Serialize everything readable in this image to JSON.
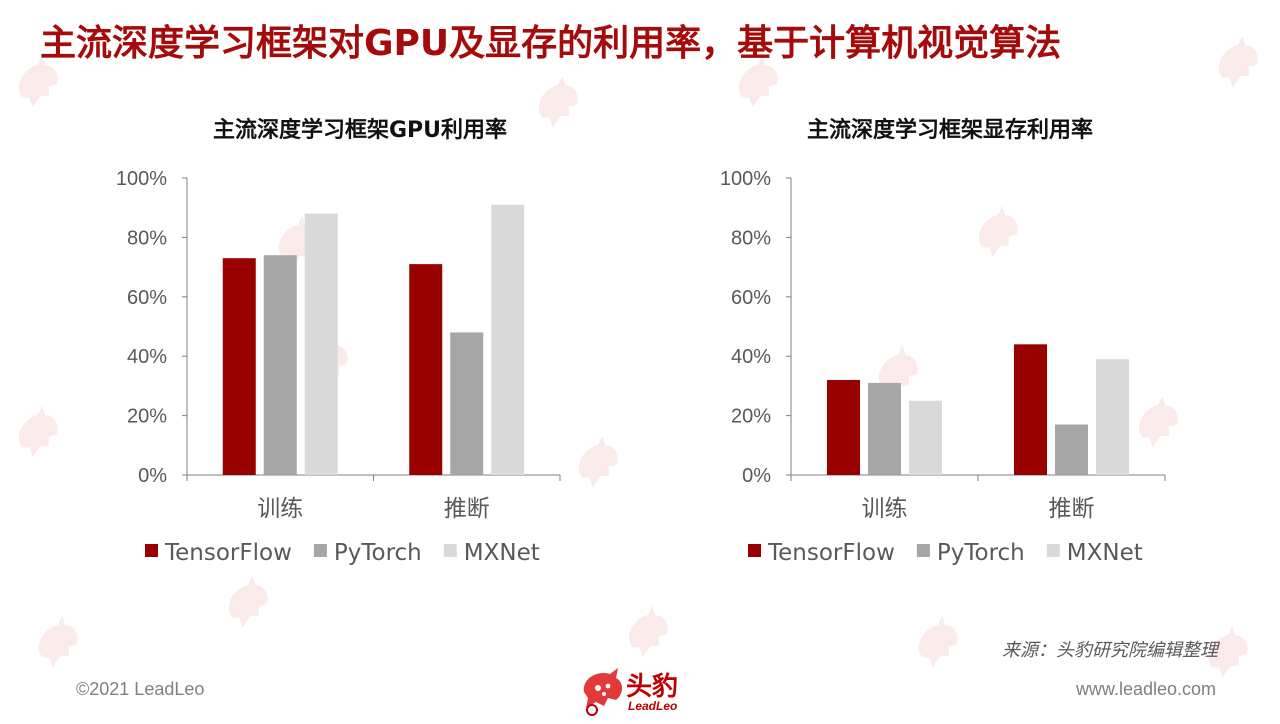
{
  "page": {
    "title": "主流深度学习框架对GPU及显存的利用率，基于计算机视觉算法",
    "source_note": "来源：头豹研究院编辑整理",
    "copyright": "©2021 LeadLeo",
    "website": "www.leadleo.com",
    "logo": {
      "cn": "头豹",
      "en": "LeadLeo"
    }
  },
  "colors": {
    "title": "#a50b0b",
    "TensorFlow": "#990000",
    "PyTorch": "#a6a6a6",
    "MXNet": "#d9d9d9",
    "axis": "#7f7f7f",
    "watermark": "#f6d9d9"
  },
  "chart_data": [
    {
      "type": "bar",
      "title": "主流深度学习框架GPU利用率",
      "categories": [
        "训练",
        "推断"
      ],
      "series": [
        {
          "name": "TensorFlow",
          "values": [
            73,
            71
          ]
        },
        {
          "name": "PyTorch",
          "values": [
            74,
            48
          ]
        },
        {
          "name": "MXNet",
          "values": [
            88,
            91
          ]
        }
      ],
      "ylim": [
        0,
        100
      ],
      "yticks": [
        "0%",
        "20%",
        "40%",
        "60%",
        "80%",
        "100%"
      ],
      "unit": "%",
      "grid": false,
      "legend": "bottom"
    },
    {
      "type": "bar",
      "title": "主流深度学习框架显存利用率",
      "categories": [
        "训练",
        "推断"
      ],
      "series": [
        {
          "name": "TensorFlow",
          "values": [
            32,
            44
          ]
        },
        {
          "name": "PyTorch",
          "values": [
            31,
            17
          ]
        },
        {
          "name": "MXNet",
          "values": [
            25,
            39
          ]
        }
      ],
      "ylim": [
        0,
        100
      ],
      "yticks": [
        "0%",
        "20%",
        "40%",
        "60%",
        "80%",
        "100%"
      ],
      "unit": "%",
      "grid": false,
      "legend": "bottom"
    }
  ]
}
